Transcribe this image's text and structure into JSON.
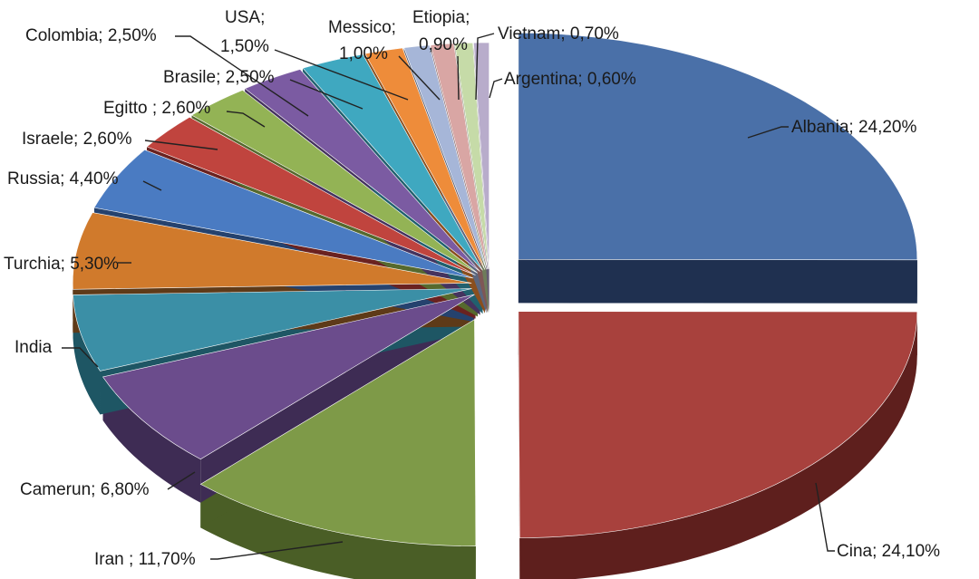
{
  "chart_data": {
    "type": "pie",
    "style": "3d-exploded",
    "title": "",
    "slices": [
      {
        "label": "Albania; 24,20%",
        "name": "Albania",
        "value": 24.2,
        "color": "#4A70A8",
        "side": "#1F3050"
      },
      {
        "label": "Cina; 24,10%",
        "name": "Cina",
        "value": 24.1,
        "color": "#A8413D",
        "side": "#5E1F1D"
      },
      {
        "label": "Iran ; 11,70%",
        "name": "Iran",
        "value": 11.7,
        "color": "#7E9A48",
        "side": "#4A5E26"
      },
      {
        "label": "Camerun; 6,80%",
        "name": "Camerun",
        "value": 6.8,
        "color": "#6B4C8C",
        "side": "#3E2C54"
      },
      {
        "label": "India",
        "name": "India",
        "value": 5.3,
        "color": "#3B8FA6",
        "side": "#1E5664"
      },
      {
        "label": "Turchia; 5,30%",
        "name": "Turchia",
        "value": 5.3,
        "color": "#D07A2C",
        "side": "#5E3A18"
      },
      {
        "label": "Russia; 4,40%",
        "name": "Russia",
        "value": 4.4,
        "color": "#4A7BC2",
        "side": "#25426E"
      },
      {
        "label": "Israele; 2,60%",
        "name": "Israele",
        "value": 2.6,
        "color": "#C0443E",
        "side": "#6A2220"
      },
      {
        "label": "Egitto ; 2,60%",
        "name": "Egitto",
        "value": 2.6,
        "color": "#93B355",
        "side": "#56692E"
      },
      {
        "label": "Brasile; 2,50%",
        "name": "Brasile",
        "value": 2.5,
        "color": "#7B5BA2",
        "side": "#45335E"
      },
      {
        "label": "Colombia; 2,50%",
        "name": "Colombia",
        "value": 2.5,
        "color": "#3FA8C0",
        "side": "#21606E"
      },
      {
        "label": "USA; 1,50%",
        "name": "USA",
        "value": 1.5,
        "color": "#EE8C3A",
        "side": "#8A4F1E"
      },
      {
        "label": "Messico; 1,00%",
        "name": "Messico",
        "value": 1.0,
        "color": "#A6B6D8",
        "side": "#5B667E"
      },
      {
        "label": "Etiopia; 0,90%",
        "name": "Etiopia",
        "value": 0.9,
        "color": "#D9A6A4",
        "side": "#7E5756"
      },
      {
        "label": "Vietnam; 0,70%",
        "name": "Vietnam",
        "value": 0.7,
        "color": "#C6DBA8",
        "side": "#6E7C5A"
      },
      {
        "label": "Argentina; 0,60%",
        "name": "Argentina",
        "value": 0.6,
        "color": "#B8ACCB",
        "side": "#655B73"
      }
    ]
  }
}
